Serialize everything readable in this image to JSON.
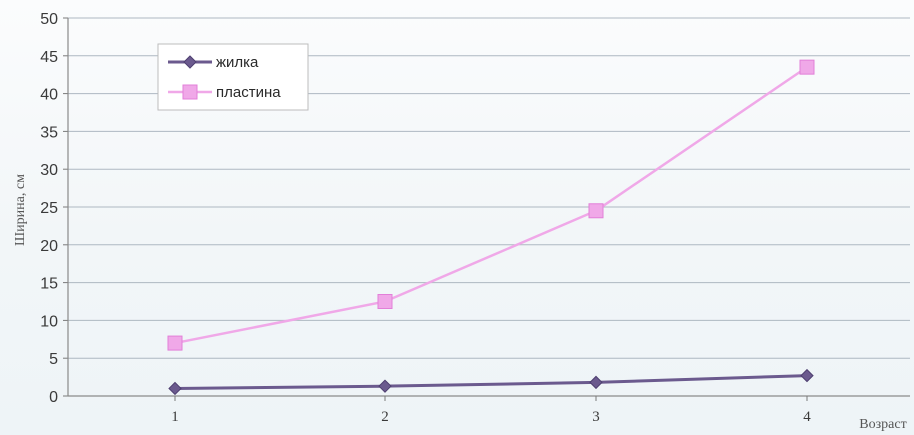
{
  "chart_data": {
    "type": "line",
    "title": "",
    "xlabel": "Возраст",
    "ylabel": "Ширина, см",
    "categories": [
      "1",
      "2",
      "3",
      "4"
    ],
    "ylim": [
      0,
      50
    ],
    "yticks": [
      "0",
      "5",
      "10",
      "15",
      "20",
      "25",
      "30",
      "35",
      "40",
      "45",
      "50"
    ],
    "grid": true,
    "legend": "top-left",
    "series": [
      {
        "name": "жилка",
        "values": [
          1,
          1.3,
          1.8,
          2.7
        ],
        "color": "#6b5a8e",
        "marker": "diamond"
      },
      {
        "name": "пластина",
        "values": [
          7,
          12.5,
          24.5,
          43.5
        ],
        "color": "#f0a8e8",
        "marker": "square"
      }
    ]
  }
}
